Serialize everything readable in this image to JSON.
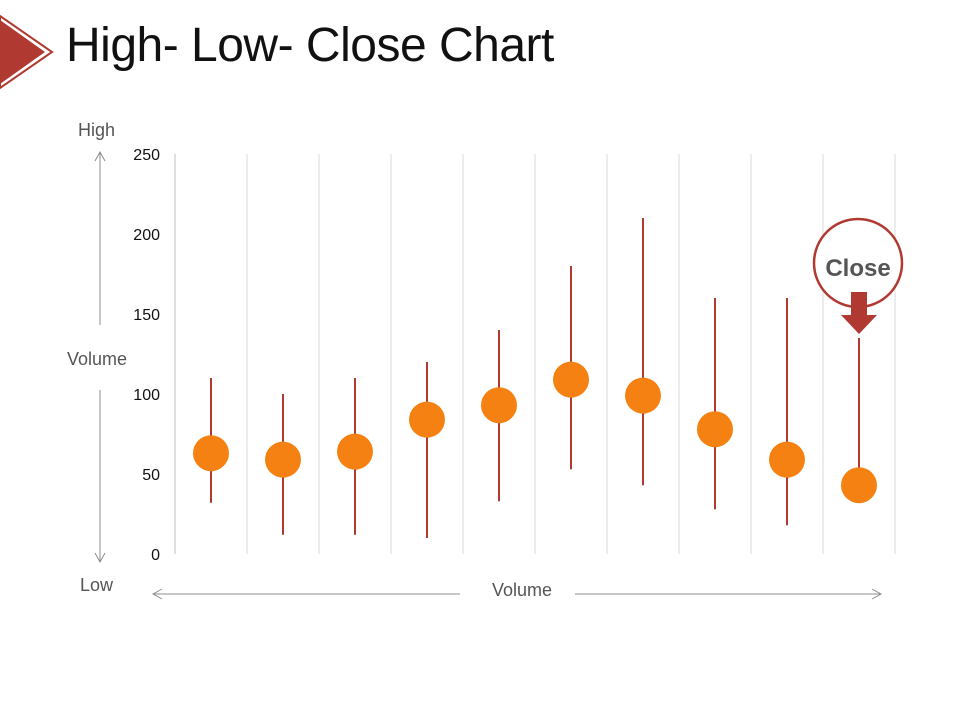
{
  "title": "High- Low- Close Chart",
  "labels": {
    "y_top": "High",
    "y_middle": "Volume",
    "y_bottom": "Low",
    "x_axis": "Volume",
    "callout": "Close"
  },
  "colors": {
    "accent": "#B03A32",
    "close_marker": "#F58113",
    "range_line": "#B03A32",
    "grid": "#D9D9D9"
  },
  "chart_data": {
    "type": "scatter",
    "subtype": "high-low-close",
    "ylim": [
      0,
      250
    ],
    "yticks": [
      0,
      50,
      100,
      150,
      200,
      250
    ],
    "ytick_labels": [
      "0",
      "50",
      "100",
      "150",
      "200",
      "250"
    ],
    "grid": "vertical",
    "series": [
      {
        "values": [
          {
            "high": 110,
            "low": 32,
            "close": 63
          },
          {
            "high": 100,
            "low": 12,
            "close": 59
          },
          {
            "high": 110,
            "low": 12,
            "close": 64
          },
          {
            "high": 120,
            "low": 10,
            "close": 84
          },
          {
            "high": 140,
            "low": 33,
            "close": 93
          },
          {
            "high": 180,
            "low": 53,
            "close": 109
          },
          {
            "high": 210,
            "low": 43,
            "close": 99
          },
          {
            "high": 160,
            "low": 28,
            "close": 78
          },
          {
            "high": 160,
            "low": 18,
            "close": 59
          },
          {
            "high": 135,
            "low": 43,
            "close": 43
          }
        ]
      }
    ]
  }
}
